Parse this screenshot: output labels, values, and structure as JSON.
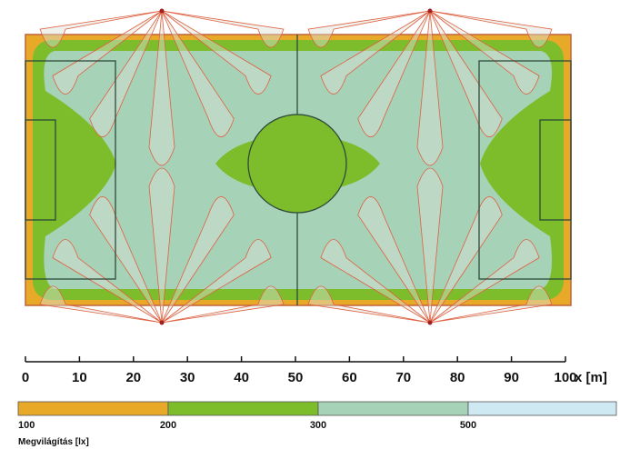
{
  "scale": {
    "ticks": [
      0,
      10,
      20,
      30,
      40,
      50,
      60,
      70,
      80,
      90,
      100
    ],
    "unit": "x [m]"
  },
  "legend": {
    "title": "Megvilágítás [lx]",
    "classes": [
      {
        "label": 100,
        "color": "#e8a928"
      },
      {
        "label": 200,
        "color": "#7dbd2c"
      },
      {
        "label": 300,
        "color": "#a6d2b8"
      },
      {
        "label": 500,
        "color": "#cfe9f2"
      }
    ]
  }
}
